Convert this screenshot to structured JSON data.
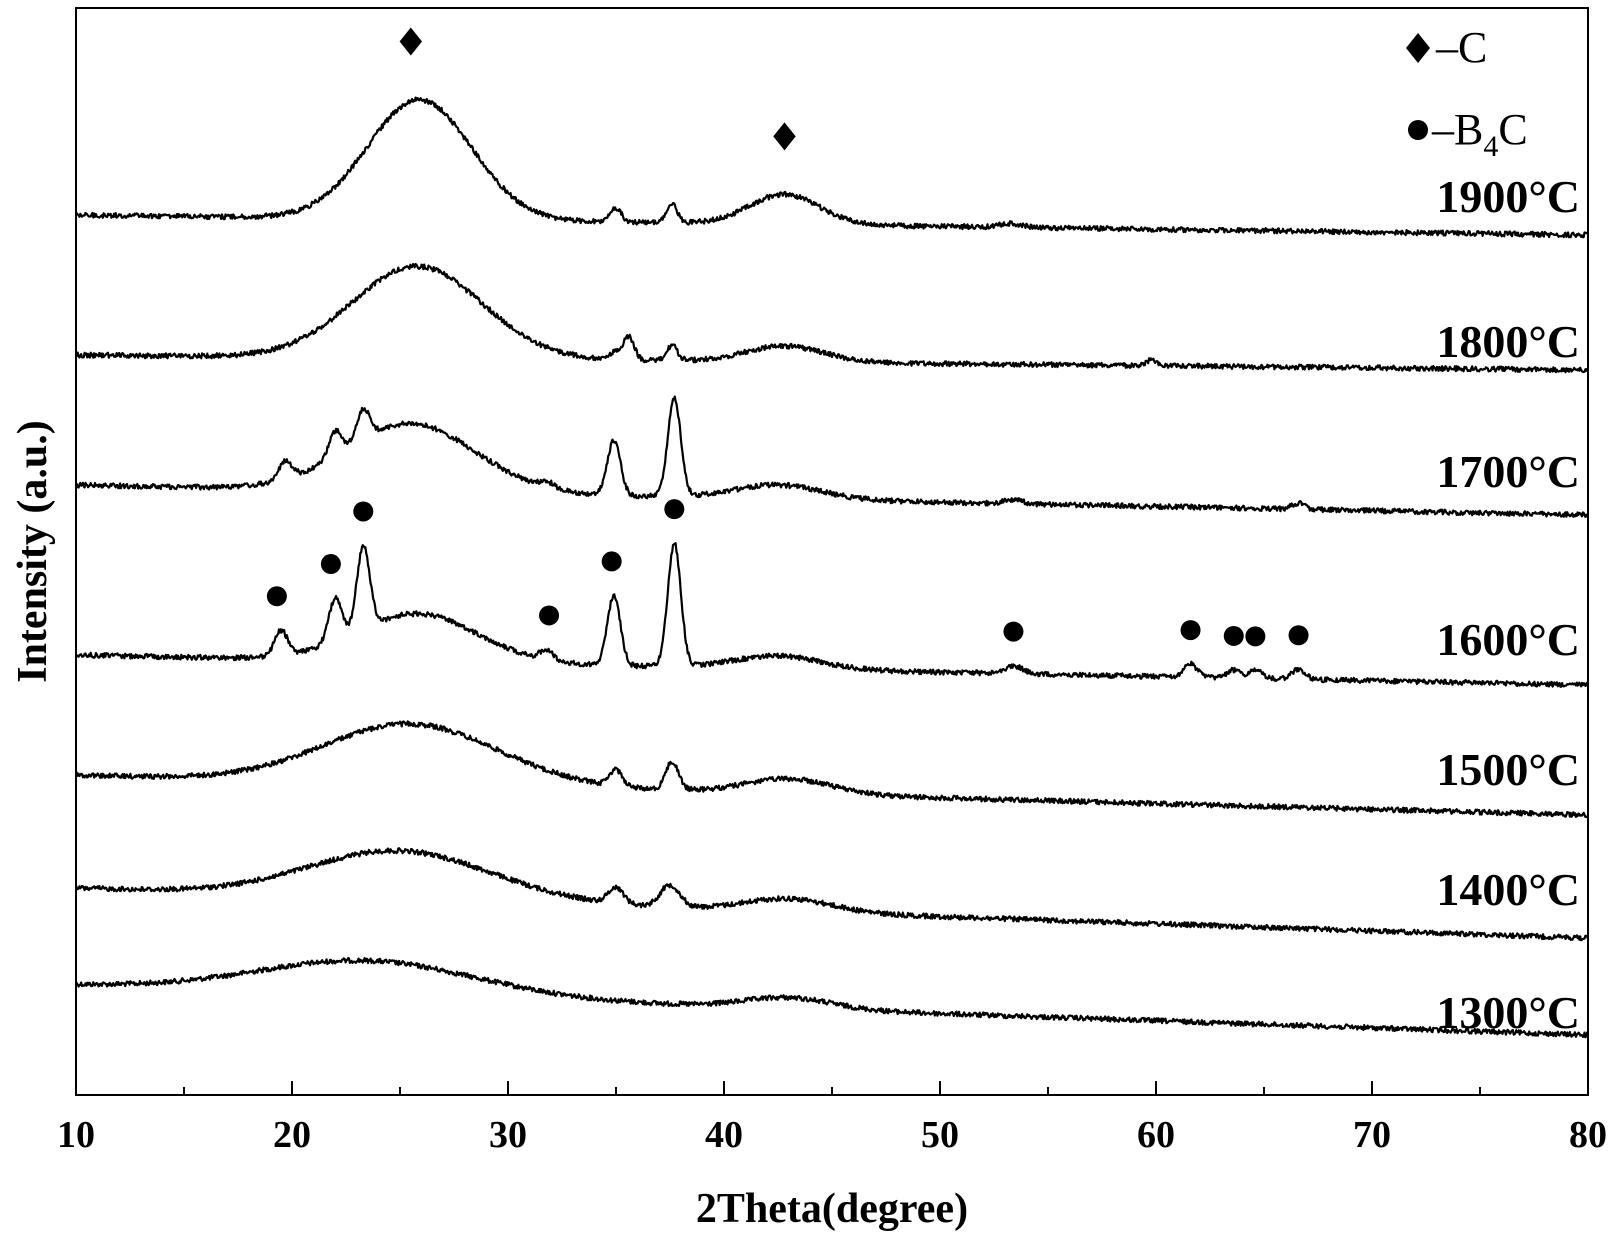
{
  "chart_data": {
    "type": "line",
    "xlabel": "2Theta(degree)",
    "ylabel": "Intensity (a.u.)",
    "xlim": [
      10,
      80
    ],
    "xticks": [
      "10",
      "20",
      "30",
      "40",
      "50",
      "60",
      "70",
      "80"
    ],
    "ticks_at": [
      10,
      20,
      30,
      40,
      50,
      60,
      70,
      80
    ],
    "yticks_shown": false,
    "grid": false,
    "legend": {
      "placement": "top-right",
      "items": [
        {
          "marker": "diamond",
          "text": "–C"
        },
        {
          "marker": "circle",
          "text": "–B",
          "sub": "4",
          "text_after": "C"
        }
      ]
    },
    "series": [
      {
        "name": "1300°C",
        "baseline": 0,
        "slope": -0.05,
        "humps": [
          [
            23.5,
            5.0,
            34
          ],
          [
            43,
            2.0,
            11
          ]
        ],
        "peaks": []
      },
      {
        "name": "1400°C",
        "baseline": 0,
        "slope": -0.08,
        "humps": [
          [
            25,
            4.2,
            48
          ],
          [
            43,
            2.0,
            13
          ]
        ],
        "peaks": [
          [
            35,
            0.35,
            16
          ],
          [
            37.5,
            0.45,
            22
          ]
        ]
      },
      {
        "name": "1500°C",
        "baseline": 0,
        "slope": -0.1,
        "humps": [
          [
            25.5,
            4.0,
            60
          ],
          [
            43,
            2.0,
            15
          ]
        ],
        "peaks": [
          [
            35,
            0.3,
            16
          ],
          [
            37.6,
            0.3,
            28
          ]
        ]
      },
      {
        "name": "1600°C",
        "baseline": 0,
        "slope": -0.1,
        "humps": [
          [
            25.8,
            2.8,
            48
          ],
          [
            42.5,
            2.0,
            13
          ]
        ],
        "peaks": [
          [
            19.5,
            0.3,
            25
          ],
          [
            22,
            0.3,
            43
          ],
          [
            23.3,
            0.3,
            83
          ],
          [
            31.8,
            0.3,
            10
          ],
          [
            34.9,
            0.3,
            70
          ],
          [
            37.7,
            0.3,
            123
          ],
          [
            53.4,
            0.4,
            8
          ],
          [
            61.6,
            0.3,
            13
          ],
          [
            63.6,
            0.3,
            8
          ],
          [
            64.6,
            0.3,
            8
          ],
          [
            66.6,
            0.3,
            10
          ]
        ]
      },
      {
        "name": "1700°C",
        "baseline": 0,
        "slope": -0.1,
        "humps": [
          [
            25.5,
            3.0,
            68
          ],
          [
            42.5,
            2.0,
            14
          ]
        ],
        "peaks": [
          [
            19.7,
            0.3,
            18
          ],
          [
            22,
            0.3,
            25
          ],
          [
            23.3,
            0.3,
            30
          ],
          [
            31.8,
            0.3,
            6
          ],
          [
            34.9,
            0.3,
            55
          ],
          [
            37.7,
            0.3,
            98
          ],
          [
            53.4,
            0.4,
            4
          ],
          [
            66.6,
            0.3,
            6
          ]
        ]
      },
      {
        "name": "1800°C",
        "baseline": 0,
        "slope": -0.1,
        "humps": [
          [
            25.8,
            3.0,
            92
          ],
          [
            42.8,
            1.8,
            16
          ]
        ],
        "peaks": [
          [
            35,
            0.25,
            8
          ],
          [
            35.6,
            0.25,
            23
          ],
          [
            37.6,
            0.25,
            15
          ],
          [
            59.8,
            0.2,
            6
          ]
        ]
      },
      {
        "name": "1900°C",
        "baseline": 0,
        "slope": -0.1,
        "humps": [
          [
            25.9,
            2.4,
            120
          ],
          [
            42.8,
            1.6,
            30
          ]
        ],
        "peaks": [
          [
            35,
            0.25,
            14
          ],
          [
            37.6,
            0.25,
            18
          ],
          [
            53.3,
            0.5,
            4
          ]
        ]
      }
    ],
    "annotations": [
      {
        "marker": "diamond",
        "series": "1900°C",
        "x": 25.5
      },
      {
        "marker": "diamond",
        "series": "1900°C",
        "x": 42.8
      },
      {
        "marker": "circle",
        "series": "1600°C",
        "x": 19.3
      },
      {
        "marker": "circle",
        "series": "1600°C",
        "x": 21.8
      },
      {
        "marker": "circle",
        "series": "1600°C",
        "x": 23.3
      },
      {
        "marker": "circle",
        "series": "1600°C",
        "x": 31.9
      },
      {
        "marker": "circle",
        "series": "1600°C",
        "x": 34.8
      },
      {
        "marker": "circle",
        "series": "1600°C",
        "x": 37.7
      },
      {
        "marker": "circle",
        "series": "1600°C",
        "x": 53.4
      },
      {
        "marker": "circle",
        "series": "1600°C",
        "x": 61.6
      },
      {
        "marker": "circle",
        "series": "1600°C",
        "x": 63.6
      },
      {
        "marker": "circle",
        "series": "1600°C",
        "x": 64.6
      },
      {
        "marker": "circle",
        "series": "1600°C",
        "x": 66.6
      }
    ],
    "colors": {
      "line": "#000000",
      "background": "#ffffff"
    }
  }
}
